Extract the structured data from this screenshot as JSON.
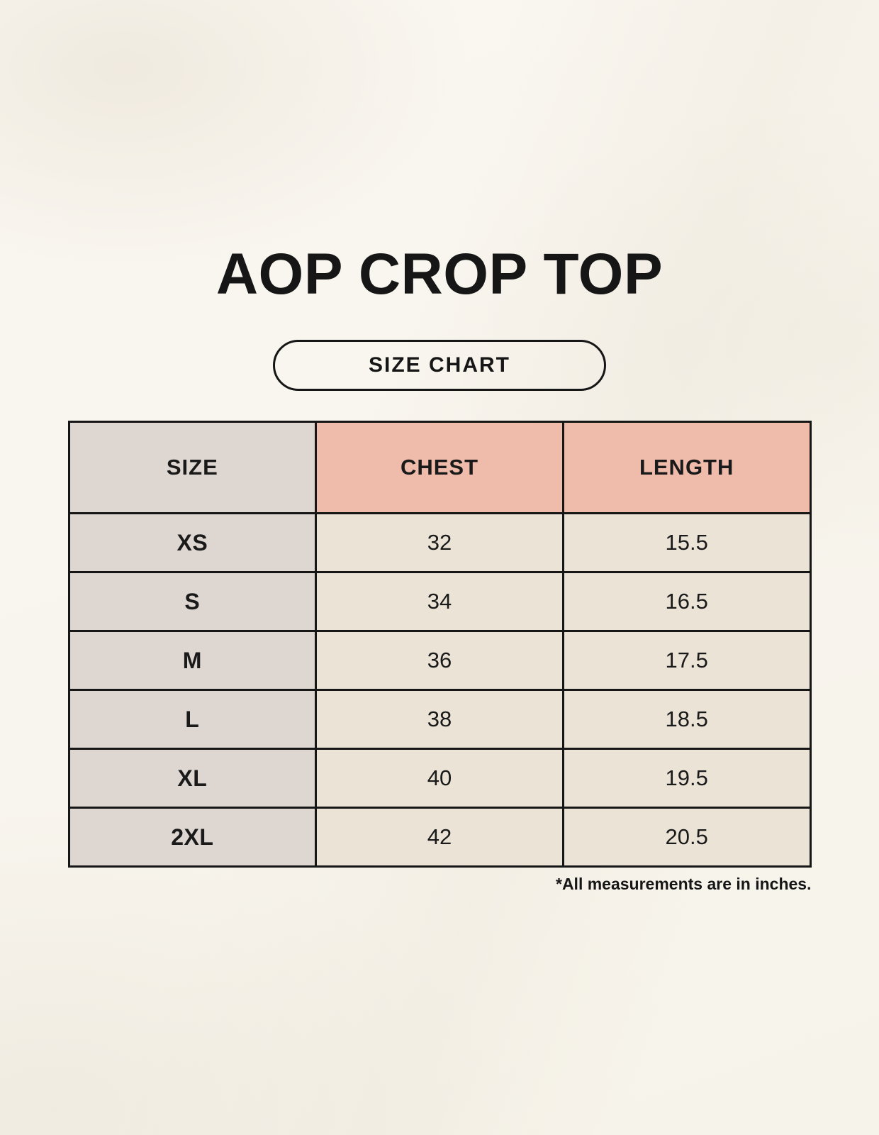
{
  "title": "AOP CROP TOP",
  "badge_label": "SIZE CHART",
  "footnote": "*All measurements are in inches.",
  "chart_data": {
    "type": "table",
    "columns": [
      "SIZE",
      "CHEST",
      "LENGTH"
    ],
    "rows": [
      [
        "XS",
        "32",
        "15.5"
      ],
      [
        "S",
        "34",
        "16.5"
      ],
      [
        "M",
        "36",
        "17.5"
      ],
      [
        "L",
        "38",
        "18.5"
      ],
      [
        "XL",
        "40",
        "19.5"
      ],
      [
        "2XL",
        "42",
        "20.5"
      ]
    ]
  },
  "colors": {
    "background": "#f8f5ee",
    "header_pink": "#efbcab",
    "size_column_gray": "#ded6d1",
    "cell_cream": "#eae3d6",
    "border": "#161616",
    "text": "#1a1a1a"
  }
}
